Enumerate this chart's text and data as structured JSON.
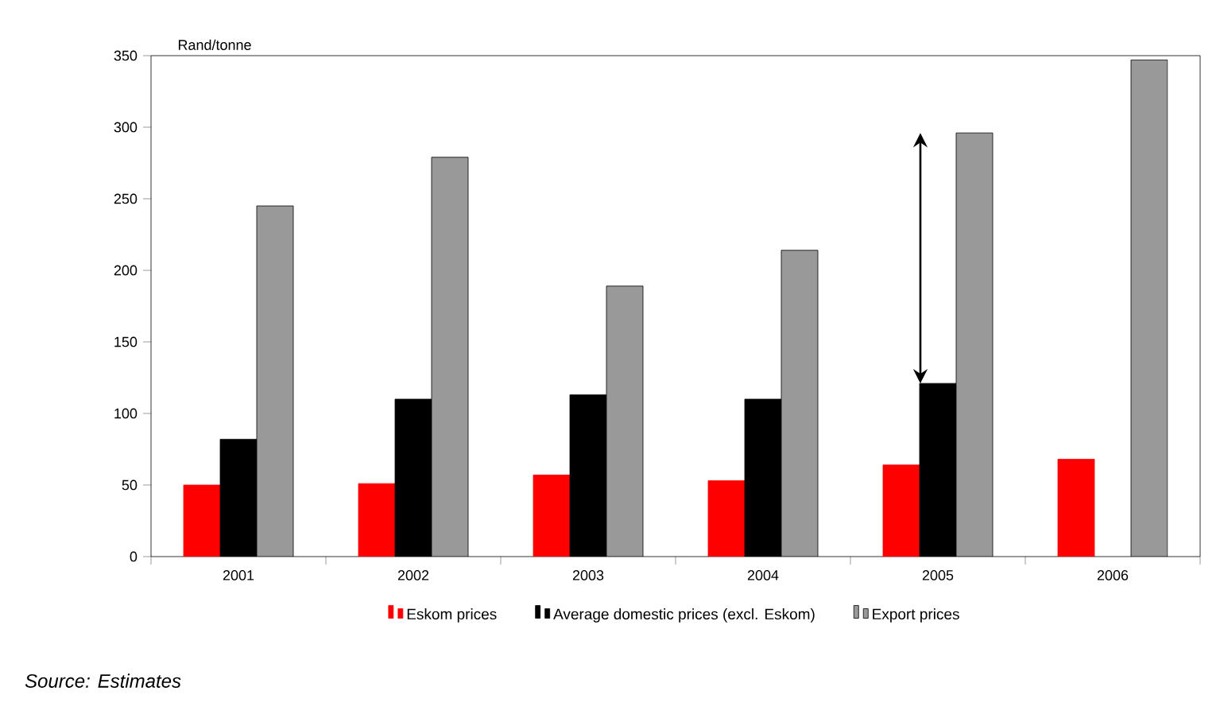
{
  "chart_data": {
    "type": "bar",
    "ylabel": "Rand/tonne",
    "categories": [
      "2001",
      "2002",
      "2003",
      "2004",
      "2005",
      "2006"
    ],
    "series": [
      {
        "name": "Eskom prices",
        "color": "#ff0000",
        "values": [
          50,
          51,
          57,
          53,
          64,
          68
        ]
      },
      {
        "name": "Average domestic prices (excl. Eskom)",
        "color": "#000000",
        "values": [
          82,
          110,
          113,
          110,
          121,
          null
        ]
      },
      {
        "name": "Export prices",
        "color": "#999999",
        "values": [
          245,
          279,
          189,
          214,
          296,
          347
        ]
      }
    ],
    "ylim": [
      0,
      350
    ],
    "yticks": [
      0,
      50,
      100,
      150,
      200,
      250,
      300,
      350
    ],
    "grid": false,
    "legend": "bottom",
    "annotations": [
      "Source: Estimates"
    ]
  }
}
